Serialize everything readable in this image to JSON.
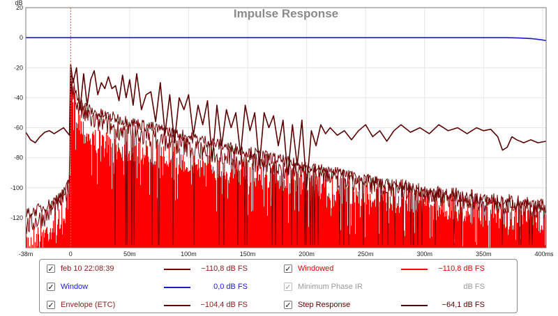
{
  "chart_data": {
    "type": "line",
    "title": "Impulse Response",
    "ylabel": "dB",
    "xlabel": "",
    "xlim": [
      -38,
      403
    ],
    "ylim": [
      -140,
      20
    ],
    "x_unit_label": "s",
    "grid": true,
    "x_ticks": [
      {
        "value": -38,
        "label": "-38m"
      },
      {
        "value": 0,
        "label": "0"
      },
      {
        "value": 50,
        "label": "50m"
      },
      {
        "value": 100,
        "label": "100m"
      },
      {
        "value": 150,
        "label": "150m"
      },
      {
        "value": 200,
        "label": "200m"
      },
      {
        "value": 250,
        "label": "250m"
      },
      {
        "value": 300,
        "label": "300m"
      },
      {
        "value": 350,
        "label": "350m"
      },
      {
        "value": 400,
        "label": "400m"
      }
    ],
    "y_ticks": [
      {
        "value": 20,
        "label": "20"
      },
      {
        "value": 0,
        "label": "0"
      },
      {
        "value": -20,
        "label": "-20"
      },
      {
        "value": -40,
        "label": "-40"
      },
      {
        "value": -60,
        "label": "-60"
      },
      {
        "value": -80,
        "label": "-80"
      },
      {
        "value": -100,
        "label": "-100"
      },
      {
        "value": -120,
        "label": "-120"
      }
    ],
    "marker_x": 0,
    "series": [
      {
        "name": "Windowed",
        "color": "#ff0000",
        "style": "filled-impulse",
        "x": [
          -38,
          -20,
          -5,
          -1,
          0,
          2,
          5,
          10,
          20,
          30,
          40,
          50,
          60,
          70,
          80,
          90,
          100,
          110,
          120,
          130,
          140,
          150,
          160,
          170,
          180,
          190,
          200,
          210,
          220,
          230,
          240,
          250,
          260,
          270,
          280,
          290,
          300,
          310,
          320,
          330,
          340,
          350,
          360,
          370,
          380,
          390,
          400,
          403
        ],
        "y": [
          -128,
          -120,
          -108,
          -100,
          -24,
          -32,
          -42,
          -52,
          -60,
          -62,
          -64,
          -66,
          -67,
          -69,
          -71,
          -73,
          -74,
          -76,
          -77,
          -79,
          -80,
          -81,
          -83,
          -84,
          -86,
          -88,
          -89,
          -90,
          -92,
          -93,
          -95,
          -96,
          -97,
          -99,
          -100,
          -101,
          -103,
          -104,
          -105,
          -106,
          -107,
          -108,
          -109,
          -110,
          -111,
          -112,
          -113,
          -113
        ]
      },
      {
        "name": "Envelope (ETC)",
        "color": "#6b0000",
        "style": "noisy-line",
        "x": [
          -38,
          -20,
          -5,
          -1,
          0,
          2,
          5,
          10,
          20,
          30,
          40,
          50,
          60,
          70,
          80,
          90,
          100,
          110,
          120,
          130,
          140,
          150,
          160,
          170,
          180,
          190,
          200,
          210,
          220,
          230,
          240,
          250,
          260,
          270,
          280,
          290,
          300,
          310,
          320,
          330,
          340,
          350,
          360,
          370,
          380,
          390,
          400,
          403
        ],
        "y": [
          -118,
          -112,
          -104,
          -95,
          -22,
          -30,
          -38,
          -45,
          -50,
          -52,
          -54,
          -56,
          -58,
          -60,
          -62,
          -64,
          -66,
          -68,
          -70,
          -72,
          -74,
          -76,
          -78,
          -80,
          -82,
          -84,
          -86,
          -88,
          -90,
          -91,
          -93,
          -95,
          -97,
          -98,
          -100,
          -101,
          -103,
          -104,
          -105,
          -106,
          -107,
          -108,
          -109,
          -110,
          -111,
          -112,
          -113,
          -113
        ]
      },
      {
        "name": "feb 10 22:08:39",
        "color": "#7a0000",
        "style": "noisy-line-steps",
        "x": [
          -38,
          -20,
          -5,
          -1,
          0,
          2,
          5,
          10,
          20,
          30,
          40,
          50,
          60,
          70,
          80,
          90,
          100,
          110,
          120,
          130,
          140,
          150,
          160,
          170,
          180,
          190,
          200,
          210,
          220,
          230,
          240,
          250,
          260,
          270,
          280,
          290,
          300,
          310,
          320,
          330,
          340,
          350,
          360,
          370,
          380,
          390,
          400,
          403
        ],
        "y": [
          -126,
          -118,
          -106,
          -98,
          -28,
          -34,
          -44,
          -50,
          -56,
          -58,
          -61,
          -63,
          -65,
          -67,
          -69,
          -71,
          -73,
          -75,
          -77,
          -78,
          -80,
          -82,
          -84,
          -85,
          -87,
          -88,
          -90,
          -91,
          -92,
          -94,
          -96,
          -97,
          -98,
          -100,
          -101,
          -102,
          -104,
          -105,
          -106,
          -107,
          -108,
          -109,
          -110,
          -111,
          -112,
          -113,
          -114,
          -114
        ]
      },
      {
        "name": "Step Response",
        "color": "#5a0000",
        "style": "line",
        "x": [
          -38,
          -34,
          -30,
          -26,
          -22,
          -18,
          -14,
          -10,
          -6,
          -3,
          -1,
          0,
          2,
          5,
          8,
          11,
          14,
          17,
          20,
          23,
          26,
          29,
          32,
          35,
          38,
          41,
          44,
          47,
          50,
          53,
          56,
          60,
          64,
          68,
          72,
          76,
          80,
          84,
          88,
          92,
          96,
          100,
          104,
          108,
          112,
          116,
          120,
          124,
          128,
          132,
          136,
          140,
          144,
          148,
          152,
          156,
          160,
          164,
          168,
          172,
          176,
          180,
          184,
          188,
          192,
          196,
          200,
          204,
          208,
          212,
          216,
          220,
          226,
          232,
          238,
          244,
          250,
          256,
          262,
          268,
          274,
          280,
          288,
          296,
          304,
          312,
          320,
          328,
          336,
          344,
          350,
          356,
          362,
          366,
          370,
          374,
          378,
          384,
          390,
          396,
          403
        ],
        "y": [
          -63,
          -68,
          -70,
          -66,
          -63,
          -62,
          -64,
          -62,
          -60,
          -63,
          -65,
          -18,
          -30,
          -20,
          -48,
          -24,
          -45,
          -28,
          -22,
          -38,
          -30,
          -34,
          -26,
          -34,
          -32,
          -42,
          -25,
          -40,
          -28,
          -45,
          -24,
          -48,
          -38,
          -36,
          -56,
          -30,
          -64,
          -38,
          -70,
          -40,
          -48,
          -38,
          -65,
          -45,
          -58,
          -42,
          -82,
          -45,
          -72,
          -48,
          -60,
          -50,
          -78,
          -45,
          -62,
          -50,
          -85,
          -50,
          -60,
          -52,
          -72,
          -55,
          -92,
          -58,
          -85,
          -55,
          -100,
          -62,
          -72,
          -58,
          -64,
          -60,
          -65,
          -62,
          -68,
          -62,
          -58,
          -66,
          -62,
          -69,
          -62,
          -58,
          -63,
          -60,
          -64,
          -58,
          -62,
          -60,
          -64,
          -60,
          -62,
          -61,
          -66,
          -75,
          -73,
          -66,
          -68,
          -70,
          -68,
          -70,
          -69
        ]
      },
      {
        "name": "Window",
        "color": "#1a1acc",
        "style": "line",
        "x": [
          -38,
          0,
          100,
          200,
          300,
          370,
          380,
          390,
          395,
          400,
          403
        ],
        "y": [
          0,
          0,
          0,
          0,
          0,
          0,
          -0.2,
          -0.6,
          -1.0,
          -1.5,
          -2.0
        ]
      }
    ]
  },
  "legend": {
    "items": [
      {
        "checked": true,
        "name": "feb 10 22:08:39",
        "name_color": "#8b1a1a",
        "swatch_color": "#7a0000",
        "value": "−110,8 dB FS",
        "value_color": "#8b1a1a"
      },
      {
        "checked": true,
        "name": "Windowed",
        "name_color": "#e00000",
        "swatch_color": "#ff0000",
        "value": "−110,8 dB FS",
        "value_color": "#e00000"
      },
      {
        "checked": true,
        "name": "Window",
        "name_color": "#1a1acc",
        "swatch_color": "#1a1acc",
        "value": "0,0 dB FS",
        "value_color": "#1a1acc"
      },
      {
        "checked": true,
        "dim": true,
        "name": "Minimum Phase IR",
        "name_color": "#9a9a9a",
        "swatch_color": "",
        "value": "dB FS",
        "value_color": "#9a9a9a"
      },
      {
        "checked": true,
        "name": "Envelope (ETC)",
        "name_color": "#8b1a1a",
        "swatch_color": "#6b0000",
        "value": "−104,4 dB FS",
        "value_color": "#8b1a1a"
      },
      {
        "checked": true,
        "name": "Step Response",
        "name_color": "#5a0000",
        "swatch_color": "#5a0000",
        "value": "−64,1 dB FS",
        "value_color": "#5a0000"
      }
    ],
    "check_glyph": "✓"
  }
}
